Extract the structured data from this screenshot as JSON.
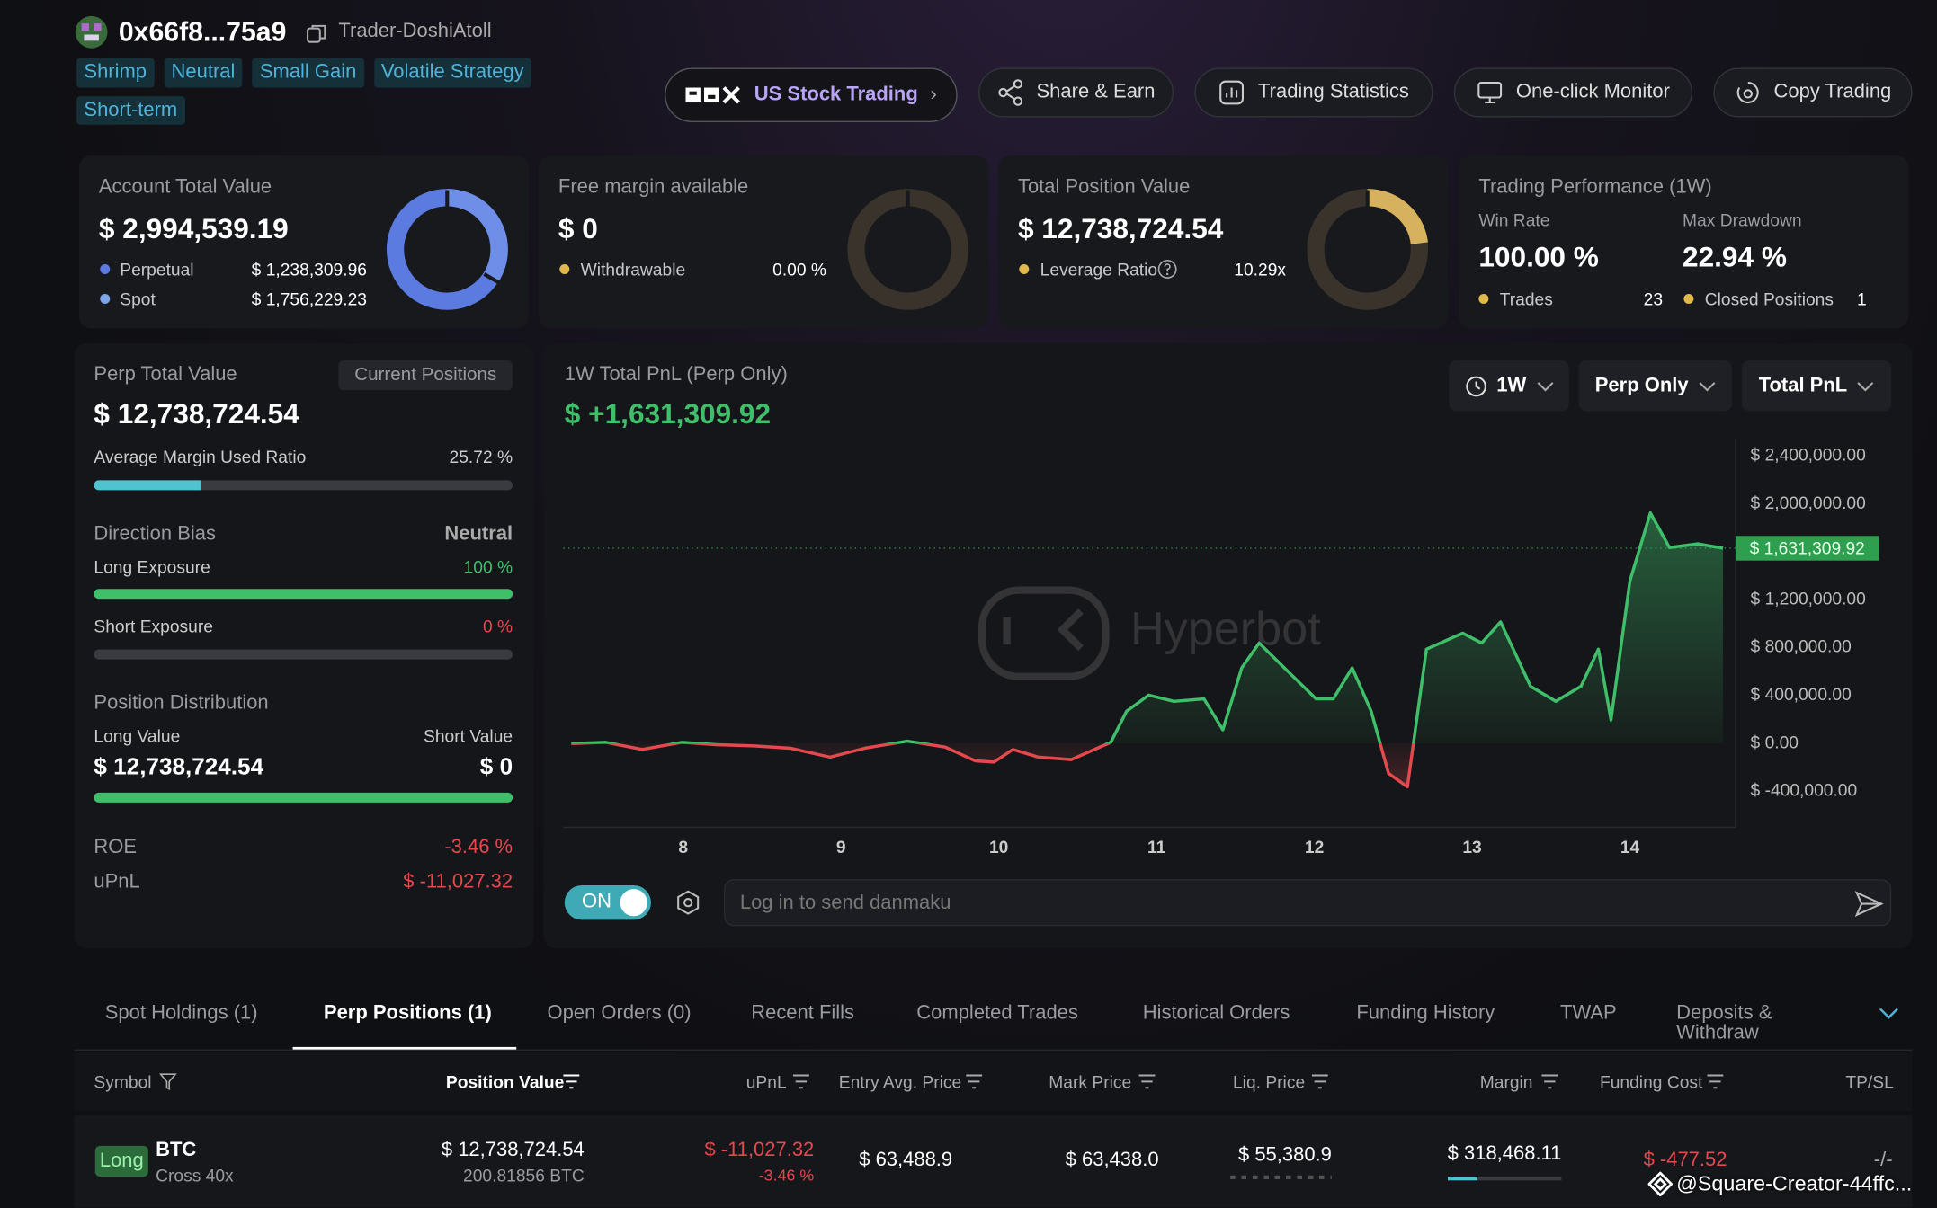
{
  "header": {
    "address": "0x66f8...75a9",
    "name": "Trader-DoshiAtoll",
    "tags": [
      "Shrimp",
      "Neutral",
      "Small Gain",
      "Volatile Strategy",
      "Short-term"
    ]
  },
  "actions": {
    "us_stock": "US Stock Trading",
    "buttons": [
      "Share & Earn",
      "Trading Statistics",
      "One-click Monitor",
      "Copy Trading"
    ]
  },
  "summary": {
    "account": {
      "title": "Account Total Value",
      "value": "$ 2,994,539.19",
      "rows": [
        [
          "Perpetual",
          "$ 1,238,309.96"
        ],
        [
          "Spot",
          "$ 1,756,229.23"
        ]
      ]
    },
    "margin": {
      "title": "Free margin available",
      "value": "$ 0",
      "rows": [
        [
          "Withdrawable",
          "0.00 %"
        ]
      ]
    },
    "position": {
      "title": "Total Position Value",
      "value": "$ 12,738,724.54",
      "rows": [
        [
          "Leverage Ratio",
          "10.29x"
        ]
      ]
    },
    "performance": {
      "title": "Trading Performance (1W)",
      "win_rate_label": "Win Rate",
      "win_rate": "100.00 %",
      "drawdown_label": "Max Drawdown",
      "drawdown": "22.94 %",
      "trades_label": "Trades",
      "trades": "23",
      "closed_label": "Closed Positions",
      "closed": "1"
    }
  },
  "perp": {
    "title": "Perp Total Value",
    "tab": "Current Positions",
    "value": "$ 12,738,724.54",
    "margin_label": "Average Margin Used Ratio",
    "margin_ratio": "25.72 %",
    "bias_label": "Direction Bias",
    "bias": "Neutral",
    "long_label": "Long Exposure",
    "long": "100 %",
    "short_label": "Short Exposure",
    "short": "0 %",
    "dist_label": "Position Distribution",
    "long_value_label": "Long Value",
    "short_value_label": "Short Value",
    "long_value": "$ 12,738,724.54",
    "short_value": "$ 0",
    "roe_label": "ROE",
    "roe": "-3.46 %",
    "upnl_label": "uPnL",
    "upnl": "$ -11,027.32"
  },
  "chart_data": {
    "type": "area",
    "title": "1W Total PnL (Perp Only)",
    "headline": "$ +1,631,309.92",
    "filters": [
      "1W",
      "Perp Only",
      "Total PnL"
    ],
    "watermark": "Hyperbot",
    "x": [
      7.29,
      7.51,
      7.74,
      7.99,
      8.21,
      8.45,
      8.68,
      8.93,
      9.15,
      9.42,
      9.66,
      9.85,
      9.97,
      10.09,
      10.25,
      10.46,
      10.71,
      10.81,
      10.95,
      11.11,
      11.3,
      11.42,
      11.54,
      11.65,
      11.85,
      12.01,
      12.12,
      12.24,
      12.36,
      12.47,
      12.59,
      12.71,
      12.94,
      13.06,
      13.18,
      13.37,
      13.53,
      13.69,
      13.8,
      13.88,
      14.0,
      14.13,
      14.25,
      14.43,
      14.59
    ],
    "values": [
      0,
      10000,
      -50000,
      10000,
      -10000,
      -20000,
      -40000,
      -114000,
      -40000,
      20000,
      -30000,
      -145000,
      -155000,
      -50000,
      -114000,
      -135000,
      10000,
      270000,
      404000,
      352000,
      373000,
      114000,
      632000,
      839000,
      580000,
      373000,
      373000,
      632000,
      269000,
      -249000,
      -363000,
      788000,
      922000,
      839000,
      1016000,
      477000,
      352000,
      477000,
      788000,
      197000,
      1357000,
      1927000,
      1637000,
      1668000,
      1631309.92
    ],
    "current_label": "$ 1,631,309.92",
    "colors": {
      "up": "#3fbf6a",
      "down": "#e5484d"
    },
    "xlim": [
      7.24,
      14.67
    ],
    "ylim": [
      -700000,
      2550000
    ],
    "xticks": [
      8,
      9,
      10,
      11,
      12,
      13,
      14
    ],
    "yticks": [
      {
        "value": 2400000,
        "label": "$ 2,400,000.00"
      },
      {
        "value": 2000000,
        "label": "$ 2,000,000.00"
      },
      {
        "value": 1200000,
        "label": "$ 1,200,000.00"
      },
      {
        "value": 800000,
        "label": "$ 800,000.00"
      },
      {
        "value": 400000,
        "label": "$ 400,000.00"
      },
      {
        "value": 0,
        "label": "$ 0.00"
      },
      {
        "value": -400000,
        "label": "$ -400,000.00"
      }
    ]
  },
  "danmaku": {
    "toggle": "ON",
    "placeholder": "Log in to send danmaku"
  },
  "tabs": [
    "Spot Holdings (1)",
    "Perp Positions (1)",
    "Open Orders (0)",
    "Recent Fills",
    "Completed Trades",
    "Historical Orders",
    "Funding History",
    "TWAP",
    "Deposits & Withdraw"
  ],
  "table": {
    "headers": [
      "Symbol",
      "Position Value",
      "uPnL",
      "Entry Avg. Price",
      "Mark Price",
      "Liq. Price",
      "Margin",
      "Funding Cost",
      "TP/SL"
    ],
    "rows": [
      {
        "side": "Long",
        "symbol": "BTC",
        "mode": "Cross 40x",
        "position_value": "$ 12,738,724.54",
        "size": "200.81856 BTC",
        "upnl": "$ -11,027.32",
        "upnl_pct": "-3.46 %",
        "entry": "$ 63,488.9",
        "mark": "$ 63,438.0",
        "liq": "$ 55,380.9",
        "margin": "$ 318,468.11",
        "funding": "$ -477.52",
        "tpsl": "-/-"
      }
    ]
  },
  "footer_watermark": "@Square-Creator-44ffc..."
}
